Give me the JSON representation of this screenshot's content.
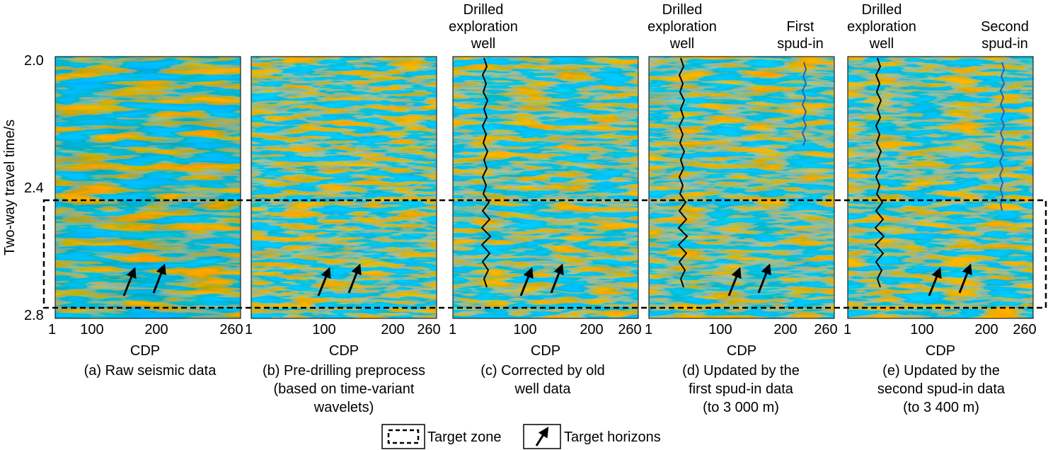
{
  "figure": {
    "y_axis_label": "Two-way travel time/s",
    "y_ticks": [
      "2.0",
      "2.4",
      "2.8"
    ],
    "x_axis_label": "CDP",
    "x_ticks": [
      "1",
      "100",
      "200",
      "260"
    ],
    "panels": [
      {
        "id": "a",
        "caption": [
          "(a) Raw seismic data"
        ],
        "well_labels": []
      },
      {
        "id": "b",
        "caption": [
          "(b) Pre-drilling preprocess",
          "(based on time-variant",
          "wavelets)"
        ],
        "well_labels": []
      },
      {
        "id": "c",
        "caption": [
          "(c) Corrected by old",
          "well data"
        ],
        "well_labels": [
          {
            "kind": "exploration",
            "lines": [
              "Drilled",
              "exploration",
              "well"
            ]
          }
        ]
      },
      {
        "id": "d",
        "caption": [
          "(d) Updated by the",
          "first spud-in data",
          "(to 3 000 m)"
        ],
        "well_labels": [
          {
            "kind": "exploration",
            "lines": [
              "Drilled",
              "exploration",
              "well"
            ]
          },
          {
            "kind": "spud",
            "lines": [
              "First",
              "spud-in"
            ]
          }
        ]
      },
      {
        "id": "e",
        "caption": [
          "(e) Updated by the",
          "second spud-in data",
          "(to 3 400 m)"
        ],
        "well_labels": [
          {
            "kind": "exploration",
            "lines": [
              "Drilled",
              "exploration",
              "well"
            ]
          },
          {
            "kind": "spud",
            "lines": [
              "Second",
              "spud-in"
            ]
          }
        ]
      }
    ],
    "legend": {
      "target_zone": "Target zone",
      "target_horizons": "Target horizons"
    },
    "colors": {
      "positive": "#d62a2a",
      "negative": "#2a48a0",
      "well_trace": "#000000",
      "spud_trace": "#2a5fb0"
    }
  }
}
